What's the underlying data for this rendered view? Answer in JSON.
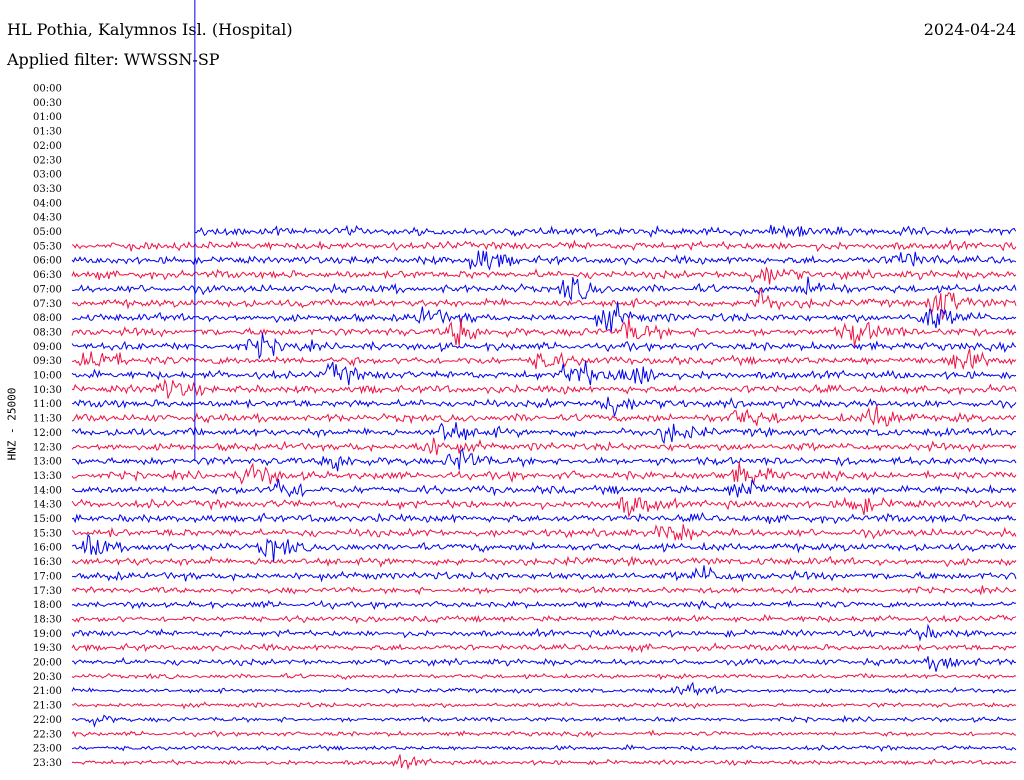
{
  "header": {
    "station": "HL Pothia, Kalymnos Isl. (Hospital)",
    "filter": "Applied filter: WWSSN-SP",
    "date": "2024-04-24"
  },
  "chart_data": {
    "type": "line",
    "title": "HL Pothia, Kalymnos Isl. (Hospital)",
    "subtitle": "Applied filter: WWSSN-SP",
    "ylabel": "HNZ - 25000",
    "row_labels": [
      "00:00",
      "00:30",
      "01:00",
      "01:30",
      "02:00",
      "02:30",
      "03:00",
      "03:30",
      "04:00",
      "04:30",
      "05:00",
      "05:30",
      "06:00",
      "06:30",
      "07:00",
      "07:30",
      "08:00",
      "08:30",
      "09:00",
      "09:30",
      "10:00",
      "10:30",
      "11:00",
      "11:30",
      "12:00",
      "12:30",
      "13:00",
      "13:30",
      "14:00",
      "14:30",
      "15:00",
      "15:30",
      "16:00",
      "16:30",
      "17:00",
      "17:30",
      "18:00",
      "18:30",
      "19:00",
      "19:30",
      "20:00",
      "20:30",
      "21:00",
      "21:30",
      "22:00",
      "22:30",
      "23:00",
      "23:30"
    ],
    "first_data_row": "05:00",
    "data_start_fraction_first_row": 0.13,
    "grid": false,
    "series_colors": [
      "#0000ee",
      "#ee1144"
    ],
    "events": [
      {
        "row": "05:00",
        "at": 0.75,
        "level": 1.4
      },
      {
        "row": "06:00",
        "at": 0.43,
        "level": 2.0
      },
      {
        "row": "06:00",
        "at": 0.88,
        "level": 1.6
      },
      {
        "row": "06:30",
        "at": 0.73,
        "level": 2.0
      },
      {
        "row": "07:00",
        "at": 0.53,
        "level": 1.8
      },
      {
        "row": "07:00",
        "at": 0.78,
        "level": 1.4
      },
      {
        "row": "07:30",
        "at": 0.73,
        "level": 1.8
      },
      {
        "row": "07:30",
        "at": 0.92,
        "level": 2.6
      },
      {
        "row": "08:00",
        "at": 0.38,
        "level": 1.6
      },
      {
        "row": "08:00",
        "at": 0.57,
        "level": 2.0
      },
      {
        "row": "08:00",
        "at": 0.91,
        "level": 2.0
      },
      {
        "row": "08:30",
        "at": 0.41,
        "level": 2.0
      },
      {
        "row": "08:30",
        "at": 0.59,
        "level": 2.0
      },
      {
        "row": "08:30",
        "at": 0.83,
        "level": 2.2
      },
      {
        "row": "09:00",
        "at": 0.2,
        "level": 1.6
      },
      {
        "row": "09:30",
        "at": 0.02,
        "level": 2.4
      },
      {
        "row": "09:30",
        "at": 0.5,
        "level": 1.6
      },
      {
        "row": "09:30",
        "at": 0.94,
        "level": 2.0
      },
      {
        "row": "10:00",
        "at": 0.28,
        "level": 1.6
      },
      {
        "row": "10:00",
        "at": 0.53,
        "level": 2.6
      },
      {
        "row": "10:00",
        "at": 0.59,
        "level": 2.4
      },
      {
        "row": "10:30",
        "at": 0.1,
        "level": 1.6
      },
      {
        "row": "11:00",
        "at": 0.57,
        "level": 2.0
      },
      {
        "row": "11:30",
        "at": 0.71,
        "level": 1.8
      },
      {
        "row": "11:30",
        "at": 0.85,
        "level": 2.0
      },
      {
        "row": "12:00",
        "at": 0.4,
        "level": 2.0
      },
      {
        "row": "12:00",
        "at": 0.63,
        "level": 1.6
      },
      {
        "row": "12:30",
        "at": 0.38,
        "level": 1.6
      },
      {
        "row": "13:00",
        "at": 0.41,
        "level": 1.8
      },
      {
        "row": "13:00",
        "at": 0.28,
        "level": 1.4
      },
      {
        "row": "13:30",
        "at": 0.19,
        "level": 2.0
      },
      {
        "row": "13:30",
        "at": 0.71,
        "level": 1.8
      },
      {
        "row": "14:00",
        "at": 0.22,
        "level": 1.8
      },
      {
        "row": "14:00",
        "at": 0.71,
        "level": 2.0
      },
      {
        "row": "14:30",
        "at": 0.59,
        "level": 1.8
      },
      {
        "row": "14:30",
        "at": 0.83,
        "level": 1.6
      },
      {
        "row": "15:30",
        "at": 0.63,
        "level": 1.6
      },
      {
        "row": "16:00",
        "at": 0.02,
        "level": 1.4
      },
      {
        "row": "16:00",
        "at": 0.21,
        "level": 1.6
      },
      {
        "row": "17:00",
        "at": 0.67,
        "level": 1.3
      },
      {
        "row": "19:00",
        "at": 0.9,
        "level": 1.3
      },
      {
        "row": "20:00",
        "at": 0.92,
        "level": 2.2
      },
      {
        "row": "21:00",
        "at": 0.65,
        "level": 1.8
      },
      {
        "row": "22:00",
        "at": 0.02,
        "level": 1.3
      },
      {
        "row": "23:30",
        "at": 0.35,
        "level": 1.4
      }
    ]
  }
}
